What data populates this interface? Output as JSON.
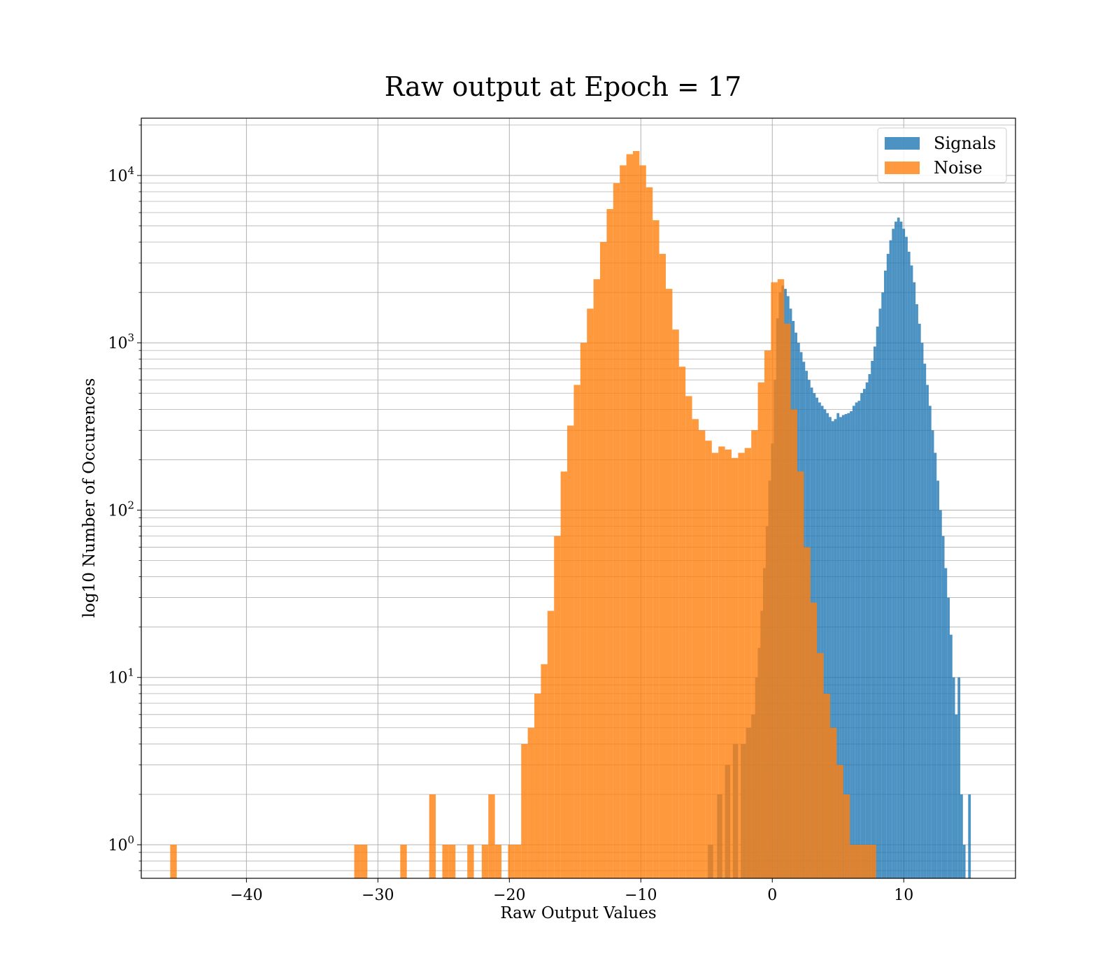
{
  "chart_data": {
    "type": "bar",
    "subtype": "overlaid-histogram",
    "title": "Raw output at Epoch = 17",
    "xlabel": "Raw Output Values",
    "ylabel": "log10 Number of Occurences",
    "xlim": [
      -48,
      18.5
    ],
    "ylim": [
      0.63,
      22000
    ],
    "yscale": "log",
    "grid": true,
    "legend_position": "top-right",
    "x_ticks": [
      -40,
      -30,
      -20,
      -10,
      0,
      10
    ],
    "x_tick_labels": [
      "−40",
      "−30",
      "−20",
      "−10",
      "0",
      "10"
    ],
    "y_ticks": [
      {
        "value": 1,
        "base": "10",
        "exp": "0"
      },
      {
        "value": 10,
        "base": "10",
        "exp": "1"
      },
      {
        "value": 100,
        "base": "10",
        "exp": "2"
      },
      {
        "value": 1000,
        "base": "10",
        "exp": "3"
      },
      {
        "value": 10000,
        "base": "10",
        "exp": "4"
      }
    ],
    "series": [
      {
        "name": "Signals",
        "color": "#1f77b4",
        "opacity": 0.8,
        "bins": [
          [
            -4.9,
            -4.5,
            1
          ],
          [
            -4.2,
            -3.8,
            2
          ],
          [
            -3.6,
            -3.2,
            3
          ],
          [
            -3.0,
            -2.6,
            4
          ],
          [
            -2.4,
            -2.0,
            4
          ],
          [
            -2.0,
            -1.6,
            5
          ],
          [
            -1.6,
            -1.3,
            6
          ],
          [
            -1.3,
            -1.1,
            10
          ],
          [
            -1.1,
            -0.9,
            15
          ],
          [
            -0.9,
            -0.7,
            25
          ],
          [
            -0.7,
            -0.5,
            45
          ],
          [
            -0.5,
            -0.3,
            80
          ],
          [
            -0.3,
            -0.1,
            150
          ],
          [
            -0.1,
            0.1,
            250
          ],
          [
            0.1,
            0.3,
            600
          ],
          [
            0.3,
            0.5,
            1400
          ],
          [
            0.5,
            0.7,
            2000
          ],
          [
            0.7,
            0.9,
            2200
          ],
          [
            0.9,
            1.1,
            2100
          ],
          [
            1.1,
            1.3,
            1900
          ],
          [
            1.3,
            1.5,
            1600
          ],
          [
            1.5,
            1.7,
            1350
          ],
          [
            1.7,
            1.9,
            1150
          ],
          [
            1.9,
            2.1,
            1000
          ],
          [
            2.1,
            2.3,
            880
          ],
          [
            2.3,
            2.5,
            770
          ],
          [
            2.5,
            2.7,
            680
          ],
          [
            2.7,
            2.9,
            600
          ],
          [
            2.9,
            3.1,
            540
          ],
          [
            3.1,
            3.3,
            500
          ],
          [
            3.3,
            3.5,
            470
          ],
          [
            3.5,
            3.7,
            440
          ],
          [
            3.7,
            3.9,
            420
          ],
          [
            3.9,
            4.1,
            400
          ],
          [
            4.1,
            4.3,
            380
          ],
          [
            4.3,
            4.5,
            360
          ],
          [
            4.5,
            4.7,
            340
          ],
          [
            4.7,
            4.9,
            350
          ],
          [
            4.9,
            5.1,
            380
          ],
          [
            5.1,
            5.3,
            360
          ],
          [
            5.3,
            5.5,
            370
          ],
          [
            5.5,
            5.7,
            375
          ],
          [
            5.7,
            5.9,
            380
          ],
          [
            5.9,
            6.1,
            390
          ],
          [
            6.1,
            6.3,
            420
          ],
          [
            6.3,
            6.5,
            440
          ],
          [
            6.5,
            6.7,
            450
          ],
          [
            6.7,
            6.9,
            500
          ],
          [
            6.9,
            7.1,
            530
          ],
          [
            7.1,
            7.3,
            580
          ],
          [
            7.3,
            7.5,
            650
          ],
          [
            7.5,
            7.7,
            780
          ],
          [
            7.7,
            7.9,
            950
          ],
          [
            7.9,
            8.1,
            1250
          ],
          [
            8.1,
            8.3,
            1600
          ],
          [
            8.3,
            8.5,
            2000
          ],
          [
            8.5,
            8.7,
            2700
          ],
          [
            8.7,
            8.9,
            3400
          ],
          [
            8.9,
            9.1,
            4100
          ],
          [
            9.1,
            9.3,
            4800
          ],
          [
            9.3,
            9.5,
            5300
          ],
          [
            9.5,
            9.7,
            5600
          ],
          [
            9.7,
            9.9,
            5300
          ],
          [
            9.9,
            10.1,
            4800
          ],
          [
            10.1,
            10.3,
            4300
          ],
          [
            10.3,
            10.5,
            3500
          ],
          [
            10.5,
            10.7,
            2900
          ],
          [
            10.7,
            10.9,
            2300
          ],
          [
            10.9,
            11.1,
            1700
          ],
          [
            11.1,
            11.3,
            1300
          ],
          [
            11.3,
            11.5,
            1000
          ],
          [
            11.5,
            11.7,
            750
          ],
          [
            11.7,
            11.9,
            560
          ],
          [
            11.9,
            12.1,
            420
          ],
          [
            12.1,
            12.3,
            300
          ],
          [
            12.3,
            12.5,
            220
          ],
          [
            12.5,
            12.7,
            150
          ],
          [
            12.7,
            12.9,
            100
          ],
          [
            12.9,
            13.1,
            70
          ],
          [
            13.1,
            13.3,
            45
          ],
          [
            13.3,
            13.5,
            30
          ],
          [
            13.5,
            13.7,
            18
          ],
          [
            13.7,
            13.9,
            10
          ],
          [
            13.9,
            14.1,
            6
          ],
          [
            14.1,
            14.3,
            10
          ],
          [
            14.3,
            14.5,
            2
          ],
          [
            14.5,
            14.7,
            1
          ],
          [
            14.9,
            15.1,
            2
          ]
        ]
      },
      {
        "name": "Noise",
        "color": "#ff7f0e",
        "opacity": 0.8,
        "bins": [
          [
            -45.8,
            -45.3,
            1
          ],
          [
            -31.8,
            -31.3,
            1
          ],
          [
            -31.3,
            -30.8,
            1
          ],
          [
            -28.3,
            -27.8,
            1
          ],
          [
            -26.1,
            -25.6,
            2
          ],
          [
            -25.1,
            -24.6,
            1
          ],
          [
            -24.6,
            -24.1,
            1
          ],
          [
            -23.2,
            -22.7,
            1
          ],
          [
            -22.1,
            -21.6,
            1
          ],
          [
            -21.6,
            -21.1,
            2
          ],
          [
            -21.1,
            -20.6,
            1
          ],
          [
            -20.1,
            -19.6,
            1
          ],
          [
            -19.6,
            -19.1,
            1
          ],
          [
            -19.1,
            -18.6,
            4
          ],
          [
            -18.6,
            -18.1,
            5
          ],
          [
            -18.1,
            -17.6,
            8
          ],
          [
            -17.6,
            -17.1,
            12
          ],
          [
            -17.1,
            -16.6,
            25
          ],
          [
            -16.6,
            -16.1,
            70
          ],
          [
            -16.1,
            -15.6,
            170
          ],
          [
            -15.6,
            -15.1,
            320
          ],
          [
            -15.1,
            -14.6,
            560
          ],
          [
            -14.6,
            -14.1,
            1000
          ],
          [
            -14.1,
            -13.6,
            1600
          ],
          [
            -13.6,
            -13.1,
            2400
          ],
          [
            -13.1,
            -12.6,
            4000
          ],
          [
            -12.6,
            -12.1,
            6300
          ],
          [
            -12.1,
            -11.6,
            9000
          ],
          [
            -11.6,
            -11.1,
            11500
          ],
          [
            -11.1,
            -10.6,
            13400
          ],
          [
            -10.6,
            -10.1,
            14000
          ],
          [
            -10.1,
            -9.6,
            11500
          ],
          [
            -9.6,
            -9.1,
            8500
          ],
          [
            -9.1,
            -8.6,
            5400
          ],
          [
            -8.6,
            -8.1,
            3400
          ],
          [
            -8.1,
            -7.6,
            2100
          ],
          [
            -7.6,
            -7.1,
            1200
          ],
          [
            -7.1,
            -6.6,
            720
          ],
          [
            -6.6,
            -6.1,
            480
          ],
          [
            -6.1,
            -5.6,
            350
          ],
          [
            -5.6,
            -5.1,
            300
          ],
          [
            -5.1,
            -4.6,
            260
          ],
          [
            -4.6,
            -4.1,
            220
          ],
          [
            -4.1,
            -3.6,
            240
          ],
          [
            -3.6,
            -3.1,
            230
          ],
          [
            -3.1,
            -2.6,
            205
          ],
          [
            -2.6,
            -2.1,
            220
          ],
          [
            -2.1,
            -1.6,
            235
          ],
          [
            -1.6,
            -1.1,
            300
          ],
          [
            -1.1,
            -0.6,
            580
          ],
          [
            -0.6,
            -0.1,
            900
          ],
          [
            -0.1,
            0.4,
            2300
          ],
          [
            0.4,
            0.9,
            2400
          ],
          [
            0.9,
            1.4,
            1300
          ],
          [
            1.4,
            1.9,
            400
          ],
          [
            1.9,
            2.4,
            170
          ],
          [
            2.4,
            2.9,
            60
          ],
          [
            2.9,
            3.4,
            28
          ],
          [
            3.4,
            3.9,
            14
          ],
          [
            3.9,
            4.4,
            8
          ],
          [
            4.4,
            4.9,
            5
          ],
          [
            4.9,
            5.4,
            3
          ],
          [
            5.4,
            5.9,
            2
          ],
          [
            5.9,
            6.4,
            1
          ],
          [
            6.4,
            6.9,
            1
          ],
          [
            6.9,
            7.4,
            1
          ],
          [
            7.4,
            7.9,
            1
          ]
        ]
      }
    ]
  }
}
